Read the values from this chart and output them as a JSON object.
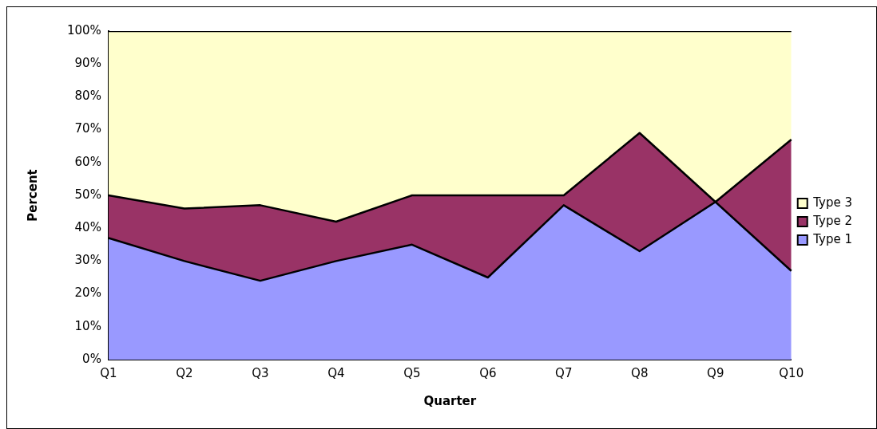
{
  "chart_data": {
    "type": "area",
    "stacked": true,
    "xlabel": "Quarter",
    "ylabel": "Percent",
    "categories": [
      "Q1",
      "Q2",
      "Q3",
      "Q4",
      "Q5",
      "Q6",
      "Q7",
      "Q8",
      "Q9",
      "Q10"
    ],
    "series": [
      {
        "name": "Type 1",
        "color": "#9999ff",
        "values": [
          37,
          30,
          24,
          30,
          35,
          25,
          47,
          33,
          48,
          27
        ]
      },
      {
        "name": "Type 2",
        "color": "#993366",
        "values": [
          13,
          16,
          23,
          12,
          15,
          25,
          3,
          36,
          0,
          40
        ]
      },
      {
        "name": "Type 3",
        "color": "#ffffcc",
        "values": [
          50,
          54,
          53,
          58,
          50,
          50,
          50,
          31,
          52,
          33
        ]
      }
    ],
    "ylim": [
      0,
      100
    ],
    "yticks": [
      {
        "value": 0,
        "label": "0%"
      },
      {
        "value": 10,
        "label": "10%"
      },
      {
        "value": 20,
        "label": "20%"
      },
      {
        "value": 30,
        "label": "30%"
      },
      {
        "value": 40,
        "label": "40%"
      },
      {
        "value": 50,
        "label": "50%"
      },
      {
        "value": 60,
        "label": "60%"
      },
      {
        "value": 70,
        "label": "70%"
      },
      {
        "value": 80,
        "label": "80%"
      },
      {
        "value": 90,
        "label": "90%"
      },
      {
        "value": 100,
        "label": "100%"
      }
    ],
    "grid": false,
    "legend": "right",
    "marker": "none"
  }
}
